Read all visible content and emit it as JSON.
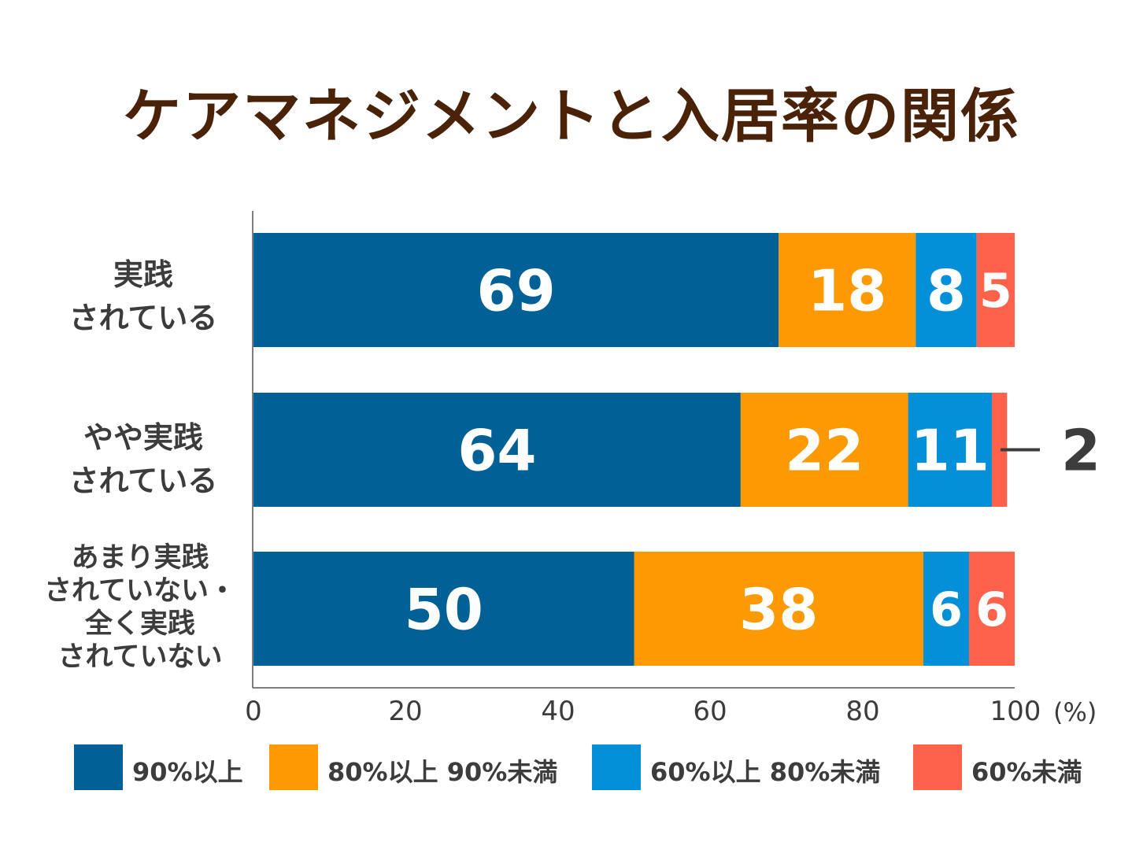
{
  "chart_data": {
    "type": "bar",
    "orientation": "horizontal",
    "stacked": true,
    "title": "ケアマネジメントと入居率の関係",
    "categories": [
      "実践\nされている",
      "やや実践\nされている",
      "あまり実践\nされていない・\n全く実践\nされていない"
    ],
    "series": [
      {
        "name": "90%以上",
        "color": "#016096",
        "values": [
          69,
          64,
          50
        ]
      },
      {
        "name": "80%以上 90%未満",
        "color": "#fd9a01",
        "values": [
          18,
          22,
          38
        ]
      },
      {
        "name": "60%以上 80%未満",
        "color": "#048fd9",
        "values": [
          8,
          11,
          6
        ]
      },
      {
        "name": "60%未満",
        "color": "#fe624a",
        "values": [
          5,
          2,
          6
        ]
      }
    ],
    "data_labels": [
      [
        "69",
        "18",
        "8",
        "5"
      ],
      [
        "64",
        "22",
        "11",
        "2"
      ],
      [
        "50",
        "38",
        "6",
        "6"
      ]
    ],
    "xlim": [
      0,
      100
    ],
    "xticks": [
      "0",
      "20",
      "40",
      "60",
      "80",
      "100"
    ],
    "xunit": "(%)",
    "legend_position": "bottom"
  }
}
